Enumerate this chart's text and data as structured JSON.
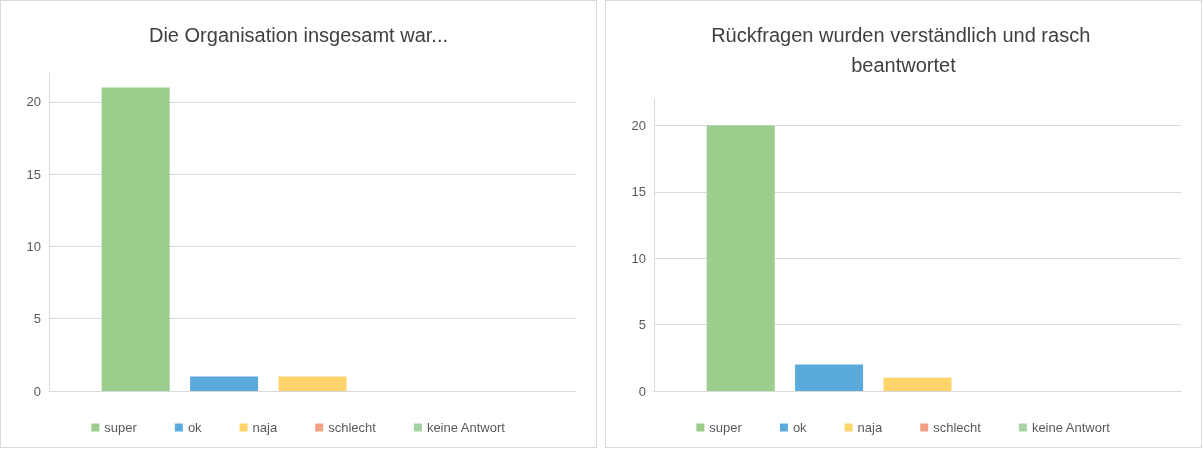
{
  "chart_data": [
    {
      "type": "bar",
      "title": "Die Organisation insgesamt war...",
      "categories": [
        null
      ],
      "series": [
        {
          "name": "super",
          "color": "#9bcd8c",
          "values": [
            21
          ]
        },
        {
          "name": "ok",
          "color": "#5aaadc",
          "values": [
            1
          ]
        },
        {
          "name": "naja",
          "color": "#fed46b",
          "values": [
            1
          ]
        },
        {
          "name": "schlecht",
          "color": "#f4a086",
          "values": [
            0
          ]
        },
        {
          "name": "keine Antwort",
          "color": "#a6d3a4",
          "values": [
            0
          ]
        }
      ],
      "ylim": [
        0,
        22
      ],
      "yticks": [
        0,
        5,
        10,
        15,
        20
      ],
      "grid": "y",
      "legend": "bottom"
    },
    {
      "type": "bar",
      "title": "Rückfragen wurden verständlich und rasch beantwortet",
      "categories": [
        null
      ],
      "series": [
        {
          "name": "super",
          "color": "#9bcd8c",
          "values": [
            20
          ]
        },
        {
          "name": "ok",
          "color": "#5aaadc",
          "values": [
            2
          ]
        },
        {
          "name": "naja",
          "color": "#fed46b",
          "values": [
            1
          ]
        },
        {
          "name": "schlecht",
          "color": "#f4a086",
          "values": [
            0
          ]
        },
        {
          "name": "keine Antwort",
          "color": "#a6d3a4",
          "values": [
            0
          ]
        }
      ],
      "ylim": [
        0,
        22
      ],
      "yticks": [
        0,
        5,
        10,
        15,
        20
      ],
      "grid": "y",
      "legend": "bottom"
    }
  ]
}
